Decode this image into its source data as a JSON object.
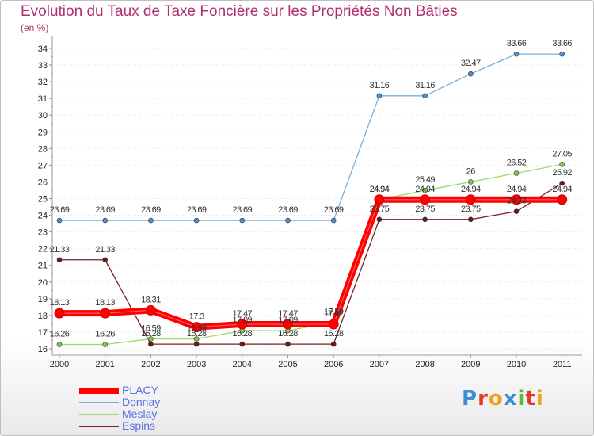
{
  "chart_data": {
    "type": "line",
    "title": "Evolution du Taux de Taxe Foncière sur les Propriétés Non Bâties",
    "ylabel": "(en %)",
    "xlabel": "",
    "ylim": [
      16,
      34
    ],
    "yticks": [
      16,
      17,
      18,
      19,
      20,
      21,
      22,
      23,
      24,
      25,
      26,
      27,
      28,
      29,
      30,
      31,
      32,
      33,
      34
    ],
    "categories": [
      "2000",
      "2001",
      "2002",
      "2003",
      "2004",
      "2005",
      "2006",
      "2007",
      "2008",
      "2009",
      "2010",
      "2011"
    ],
    "series": [
      {
        "name": "PLACY",
        "color": "#ff0000",
        "values": [
          18.13,
          18.13,
          18.31,
          17.3,
          17.47,
          17.47,
          17.47,
          24.94,
          24.94,
          24.94,
          24.94,
          24.94
        ],
        "labels": [
          "18.13",
          "18.13",
          "18.31",
          "17.3",
          "17.47",
          "17.47",
          "17.47",
          "24.94",
          "24.94",
          "24.94",
          "24.94",
          "24.94"
        ]
      },
      {
        "name": "Donnay",
        "color": "#7aaed6",
        "values": [
          23.69,
          23.69,
          23.69,
          23.69,
          23.69,
          23.69,
          23.69,
          31.16,
          31.16,
          32.47,
          33.66,
          33.66
        ],
        "labels": [
          "23.69",
          "23.69",
          "23.69",
          "23.69",
          "23.69",
          "23.69",
          "23.69",
          "31.16",
          "31.16",
          "32.47",
          "33.66",
          "33.66"
        ]
      },
      {
        "name": "Meslay",
        "color": "#99dd66",
        "values": [
          16.26,
          16.26,
          16.59,
          16.59,
          17.09,
          17.09,
          17.59,
          24.94,
          25.49,
          26,
          26.52,
          27.05
        ],
        "labels": [
          "16.26",
          "16.26",
          "16.59",
          "16.59",
          "17.09",
          "17.09",
          "17.59",
          "24.94",
          "25.49",
          "26",
          "26.52",
          "27.05"
        ]
      },
      {
        "name": "Espins",
        "color": "#7a2020",
        "values": [
          21.33,
          21.33,
          16.28,
          16.28,
          16.28,
          16.28,
          16.28,
          23.75,
          23.75,
          23.75,
          24.23,
          25.92
        ],
        "labels": [
          "21.33",
          "21.33",
          "16.28",
          "16.28",
          "16.28",
          "16.28",
          "16.28",
          "23.75",
          "23.75",
          "23.75",
          "24.23",
          "25.92"
        ]
      }
    ]
  },
  "brand": {
    "letters": [
      "P",
      "r",
      "o",
      "x",
      "i",
      "t",
      "i"
    ],
    "colors": [
      "#3b8fd8",
      "#e03b2f",
      "#f0a020",
      "#3b8fd8",
      "#5cb83a",
      "#e03b2f",
      "#f0a020"
    ]
  }
}
